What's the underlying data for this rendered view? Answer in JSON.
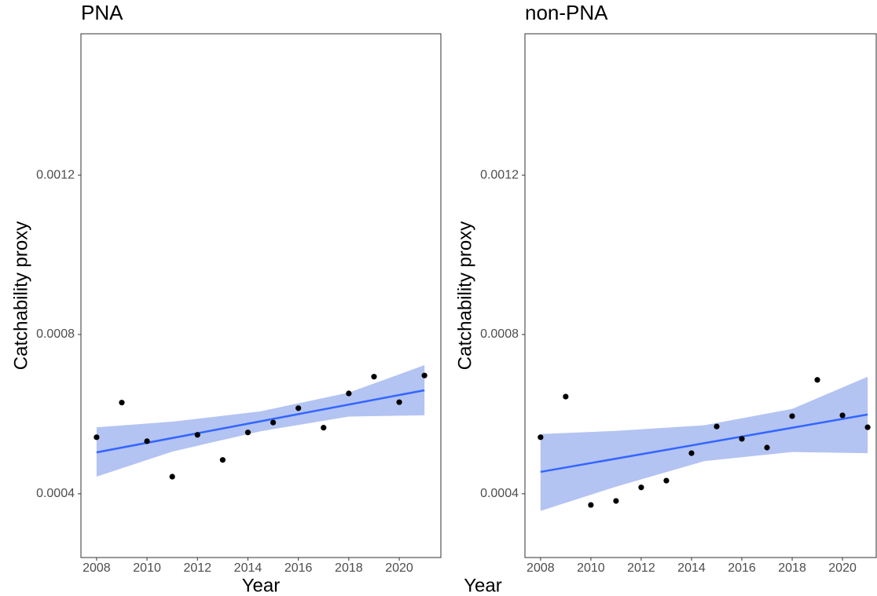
{
  "chart_data": [
    {
      "type": "scatter",
      "title": "PNA",
      "x_label": "Year",
      "y_label": "Catchability proxy",
      "x": [
        2008,
        2009,
        2010,
        2011,
        2012,
        2013,
        2014,
        2015,
        2016,
        2017,
        2018,
        2019,
        2020,
        2021
      ],
      "values": [
        0.000542,
        0.000629,
        0.000532,
        0.000443,
        0.000548,
        0.000485,
        0.000554,
        0.000579,
        0.000615,
        0.000566,
        0.000652,
        0.000694,
        0.00063,
        0.000697
      ],
      "color": "#000000",
      "trend": {
        "x": [
          2008,
          2021
        ],
        "values": [
          0.000504,
          0.00066
        ],
        "color": "#3366ff"
      },
      "band": {
        "x": [
          2008,
          2011,
          2014.5,
          2018,
          2021
        ],
        "lower": [
          0.000443,
          0.000506,
          0.000557,
          0.000594,
          0.000597
        ],
        "upper": [
          0.000567,
          0.000581,
          0.000607,
          0.000654,
          0.000723
        ],
        "color": "#b3c3f2"
      },
      "xlim": [
        2007.38,
        2021.65
      ],
      "ylim": [
        0.00024,
        0.001555
      ],
      "xticks": [
        2008,
        2010,
        2012,
        2014,
        2016,
        2018,
        2020
      ],
      "yticks": [
        0.0004,
        0.0008,
        0.0012
      ]
    },
    {
      "type": "scatter",
      "title": "non-PNA",
      "x_label": "Year",
      "y_label": "Catchability proxy",
      "x": [
        2008,
        2009,
        2010,
        2011,
        2012,
        2013,
        2014,
        2015,
        2016,
        2017,
        2018,
        2019,
        2020,
        2021
      ],
      "values": [
        0.000542,
        0.000644,
        0.000372,
        0.000382,
        0.000416,
        0.000433,
        0.000502,
        0.000569,
        0.000538,
        0.000516,
        0.000595,
        0.000686,
        0.000597,
        0.000567
      ],
      "color": "#000000",
      "trend": {
        "x": [
          2008,
          2021
        ],
        "values": [
          0.000455,
          0.000599
        ],
        "color": "#3366ff"
      },
      "band": {
        "x": [
          2008,
          2011,
          2014.5,
          2018,
          2021
        ],
        "lower": [
          0.000357,
          0.000418,
          0.000482,
          0.000505,
          0.000502
        ],
        "upper": [
          0.00055,
          0.000558,
          0.000572,
          0.000613,
          0.000694
        ],
        "color": "#b3c3f2"
      },
      "xlim": [
        2007.38,
        2021.34
      ],
      "ylim": [
        0.00024,
        0.001555
      ],
      "xticks": [
        2008,
        2010,
        2012,
        2014,
        2016,
        2018,
        2020
      ],
      "yticks": [
        0.0004,
        0.0008,
        0.0012
      ]
    }
  ]
}
